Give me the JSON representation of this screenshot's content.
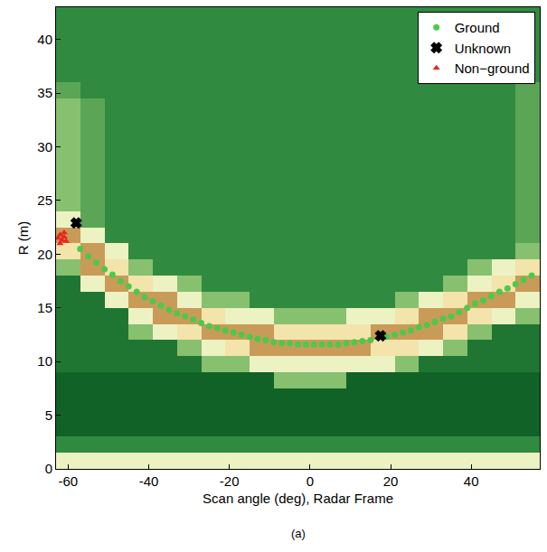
{
  "chart_data": {
    "type": "heatmap_scatter",
    "x_label": "Scan angle (deg), Radar Frame",
    "y_label": "R (m)",
    "caption": "(a)",
    "xlim": [
      -63,
      57
    ],
    "ylim": [
      0,
      43
    ],
    "xticks": [
      -60,
      -40,
      -20,
      0,
      20,
      40
    ],
    "yticks": [
      0,
      5,
      10,
      15,
      20,
      25,
      30,
      35,
      40
    ],
    "grid": false,
    "legend": "upper right",
    "heatmap": {
      "x": [
        -60,
        -54,
        -48,
        -42,
        -36,
        -30,
        -24,
        -18,
        -12,
        -6,
        0,
        6,
        12,
        18,
        24,
        30,
        36,
        42,
        48,
        54
      ],
      "y": [
        0.75,
        2.25,
        3.75,
        5.25,
        6.75,
        8.25,
        9.75,
        11.25,
        12.75,
        14.25,
        15.75,
        17.25,
        18.75,
        20.25,
        21.75,
        23.25,
        24.75,
        26.25,
        27.75,
        29.25,
        30.75,
        32.25,
        33.75,
        35.25,
        36.75,
        38.25,
        39.75,
        41.25,
        42.75
      ],
      "zlim": [
        0,
        9
      ],
      "z": [
        [
          7,
          7,
          7,
          7,
          7,
          7,
          7,
          7,
          7,
          7,
          7,
          7,
          7,
          7,
          7,
          7,
          7,
          7,
          7,
          7
        ],
        [
          3,
          3,
          3,
          3,
          3,
          3,
          3,
          3,
          3,
          3,
          3,
          3,
          3,
          3,
          3,
          3,
          3,
          3,
          3,
          3
        ],
        [
          1,
          1,
          1,
          1,
          1,
          1,
          1,
          1,
          1,
          1,
          1,
          1,
          1,
          1,
          1,
          1,
          1,
          1,
          1,
          1
        ],
        [
          1,
          1,
          1,
          1,
          1,
          1,
          1,
          1,
          1,
          1,
          1,
          1,
          1,
          1,
          1,
          1,
          1,
          1,
          1,
          1
        ],
        [
          1,
          1,
          1,
          1,
          1,
          1,
          1,
          1,
          1,
          1,
          1,
          1,
          1,
          1,
          1,
          1,
          1,
          1,
          1,
          1
        ],
        [
          1,
          1,
          1,
          1,
          1,
          1,
          1,
          1,
          1,
          5,
          5,
          5,
          1,
          1,
          1,
          1,
          1,
          1,
          1,
          1
        ],
        [
          2,
          2,
          2,
          2,
          2,
          2,
          5,
          5,
          7,
          7,
          7,
          7,
          7,
          7,
          5,
          2,
          2,
          2,
          2,
          2
        ],
        [
          2,
          2,
          2,
          2,
          2,
          5,
          7,
          8,
          9,
          9,
          9,
          9,
          9,
          8,
          8,
          7,
          5,
          2,
          2,
          2
        ],
        [
          2,
          2,
          2,
          5,
          7,
          8,
          9,
          9,
          9,
          8,
          8,
          8,
          8,
          9,
          9,
          9,
          8,
          5,
          2,
          2
        ],
        [
          2,
          2,
          2,
          7,
          9,
          9,
          8,
          7,
          7,
          5,
          5,
          5,
          7,
          7,
          8,
          9,
          9,
          8,
          7,
          5
        ],
        [
          2,
          2,
          7,
          9,
          9,
          7,
          5,
          5,
          3,
          3,
          3,
          3,
          3,
          3,
          5,
          7,
          8,
          9,
          9,
          7
        ],
        [
          2,
          7,
          9,
          8,
          7,
          5,
          3,
          3,
          3,
          3,
          3,
          3,
          3,
          3,
          3,
          3,
          5,
          7,
          8,
          9
        ],
        [
          5,
          9,
          8,
          5,
          3,
          3,
          3,
          3,
          3,
          3,
          3,
          3,
          3,
          3,
          3,
          3,
          3,
          5,
          7,
          8
        ],
        [
          8,
          9,
          7,
          3,
          3,
          3,
          3,
          3,
          3,
          3,
          3,
          3,
          3,
          3,
          3,
          3,
          3,
          3,
          3,
          5
        ],
        [
          9,
          7,
          3,
          3,
          3,
          3,
          3,
          3,
          3,
          3,
          3,
          3,
          3,
          3,
          3,
          3,
          3,
          3,
          3,
          4
        ],
        [
          7,
          4,
          3,
          3,
          3,
          3,
          3,
          3,
          3,
          3,
          3,
          3,
          3,
          3,
          3,
          3,
          3,
          3,
          3,
          4
        ],
        [
          5,
          4,
          3,
          3,
          3,
          3,
          3,
          3,
          3,
          3,
          3,
          3,
          3,
          3,
          3,
          3,
          3,
          3,
          3,
          4
        ],
        [
          5,
          4,
          3,
          3,
          3,
          3,
          3,
          3,
          3,
          3,
          3,
          3,
          3,
          3,
          3,
          3,
          3,
          3,
          3,
          4
        ],
        [
          5,
          4,
          3,
          3,
          3,
          3,
          3,
          3,
          3,
          3,
          3,
          3,
          3,
          3,
          3,
          3,
          3,
          3,
          3,
          4
        ],
        [
          5,
          4,
          3,
          3,
          3,
          3,
          3,
          3,
          3,
          3,
          3,
          3,
          3,
          3,
          3,
          3,
          3,
          3,
          3,
          4
        ],
        [
          5,
          4,
          3,
          3,
          3,
          3,
          3,
          3,
          3,
          3,
          3,
          3,
          3,
          3,
          3,
          3,
          3,
          3,
          3,
          4
        ],
        [
          5,
          4,
          3,
          3,
          3,
          3,
          3,
          3,
          3,
          3,
          3,
          3,
          3,
          3,
          3,
          3,
          3,
          3,
          3,
          4
        ],
        [
          5,
          4,
          3,
          3,
          3,
          3,
          3,
          3,
          3,
          3,
          3,
          3,
          3,
          3,
          3,
          3,
          3,
          3,
          3,
          4
        ],
        [
          4,
          3,
          3,
          3,
          3,
          3,
          3,
          3,
          3,
          3,
          3,
          3,
          3,
          3,
          3,
          3,
          3,
          3,
          3,
          4
        ],
        [
          3,
          3,
          3,
          3,
          3,
          3,
          3,
          3,
          3,
          3,
          3,
          3,
          3,
          3,
          3,
          3,
          3,
          3,
          3,
          3
        ],
        [
          3,
          3,
          3,
          3,
          3,
          3,
          3,
          3,
          3,
          3,
          3,
          3,
          3,
          3,
          3,
          3,
          3,
          3,
          3,
          3
        ],
        [
          3,
          3,
          3,
          3,
          3,
          3,
          3,
          3,
          3,
          3,
          3,
          3,
          3,
          3,
          3,
          3,
          3,
          3,
          3,
          3
        ],
        [
          3,
          3,
          3,
          3,
          3,
          3,
          3,
          3,
          3,
          3,
          3,
          3,
          3,
          3,
          3,
          3,
          3,
          3,
          3,
          3
        ],
        [
          3,
          3,
          3,
          3,
          3,
          3,
          3,
          3,
          3,
          3,
          3,
          3,
          3,
          3,
          3,
          3,
          3,
          3,
          3,
          3
        ]
      ]
    },
    "series": [
      {
        "name": "Ground",
        "type": "scatter",
        "marker": "circle",
        "color": "#4cc94c",
        "x": [
          -57,
          -55,
          -53,
          -51,
          -49,
          -47,
          -45,
          -43,
          -41,
          -39,
          -37,
          -35,
          -33,
          -31,
          -29,
          -27,
          -25,
          -23,
          -21,
          -19,
          -17,
          -15,
          -13,
          -11,
          -9,
          -7,
          -5,
          -3,
          -1,
          1,
          3,
          5,
          7,
          9,
          11,
          13,
          15,
          19,
          21,
          23,
          25,
          27,
          29,
          31,
          33,
          35,
          37,
          39,
          41,
          43,
          45,
          47,
          49,
          51,
          53,
          55
        ],
        "values": [
          20.5,
          19.8,
          19.2,
          18.6,
          18.1,
          17.5,
          17.0,
          16.5,
          16.0,
          15.6,
          15.2,
          14.8,
          14.5,
          14.2,
          13.9,
          13.6,
          13.3,
          13.1,
          12.9,
          12.7,
          12.5,
          12.3,
          12.1,
          12.0,
          11.8,
          11.7,
          11.7,
          11.6,
          11.6,
          11.6,
          11.6,
          11.6,
          11.6,
          11.7,
          11.8,
          11.9,
          12.0,
          12.3,
          12.5,
          12.7,
          12.9,
          13.2,
          13.4,
          13.7,
          14.0,
          14.2,
          14.6,
          15.0,
          15.4,
          15.7,
          16.1,
          16.5,
          16.8,
          17.2,
          17.6,
          18.0
        ]
      },
      {
        "name": "Unknown",
        "type": "scatter",
        "marker": "x",
        "color": "#000000",
        "x": [
          -58,
          17.5
        ],
        "values": [
          22.9,
          12.4
        ]
      },
      {
        "name": "Non−ground",
        "type": "scatter",
        "marker": "triangle-up",
        "color": "#e8271c",
        "x": [
          -62.5,
          -62,
          -61.5,
          -61,
          -60.5,
          -62,
          -61
        ],
        "values": [
          21.5,
          21.8,
          21.3,
          21.6,
          21.2,
          21.0,
          22.0
        ]
      }
    ]
  }
}
